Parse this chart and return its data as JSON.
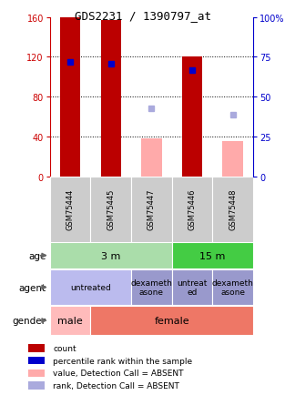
{
  "title": "GDS2231 / 1390797_at",
  "samples": [
    "GSM75444",
    "GSM75445",
    "GSM75447",
    "GSM75446",
    "GSM75448"
  ],
  "count_values": [
    160,
    157,
    0,
    120,
    0
  ],
  "count_color": "#bb0000",
  "absent_value_values": [
    0,
    0,
    38,
    0,
    35
  ],
  "absent_value_color": "#ffaaaa",
  "percentile_rank_values": [
    115,
    113,
    0,
    107,
    0
  ],
  "percentile_rank_color": "#0000cc",
  "absent_rank_values": [
    0,
    0,
    68,
    0,
    62
  ],
  "absent_rank_color": "#aaaadd",
  "ylim_left": [
    0,
    160
  ],
  "ylim_right": [
    0,
    100
  ],
  "yticks_left": [
    0,
    40,
    80,
    120,
    160
  ],
  "yticks_right": [
    0,
    25,
    50,
    75,
    100
  ],
  "age_groups": [
    {
      "label": "3 m",
      "cols": [
        0,
        1,
        2
      ],
      "color": "#aaddaa"
    },
    {
      "label": "15 m",
      "cols": [
        3,
        4
      ],
      "color": "#44cc44"
    }
  ],
  "agent_groups": [
    {
      "label": "untreated",
      "cols": [
        0,
        1
      ],
      "color": "#bbbbee"
    },
    {
      "label": "dexameth\nasone",
      "cols": [
        2
      ],
      "color": "#9999cc"
    },
    {
      "label": "untreat\ned",
      "cols": [
        3
      ],
      "color": "#9999cc"
    },
    {
      "label": "dexameth\nasone",
      "cols": [
        4
      ],
      "color": "#9999cc"
    }
  ],
  "gender_groups": [
    {
      "label": "male",
      "cols": [
        0
      ],
      "color": "#ffbbbb"
    },
    {
      "label": "female",
      "cols": [
        1,
        2,
        3,
        4
      ],
      "color": "#ee7766"
    }
  ],
  "bar_width": 0.5,
  "bg_color": "#ffffff",
  "plot_bg_color": "#ffffff",
  "sample_box_color": "#cccccc",
  "left_axis_color": "#cc0000",
  "right_axis_color": "#0000cc",
  "legend_items": [
    {
      "color": "#bb0000",
      "label": "count"
    },
    {
      "color": "#0000cc",
      "label": "percentile rank within the sample"
    },
    {
      "color": "#ffaaaa",
      "label": "value, Detection Call = ABSENT"
    },
    {
      "color": "#aaaadd",
      "label": "rank, Detection Call = ABSENT"
    }
  ]
}
